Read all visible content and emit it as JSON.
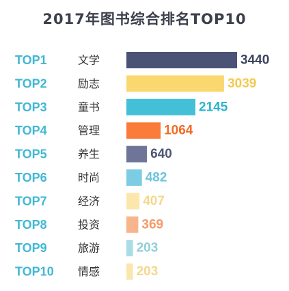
{
  "chart_data": {
    "type": "bar",
    "orientation": "horizontal",
    "title": "2017年图书综合排名TOP10",
    "ranks": [
      "TOP1",
      "TOP2",
      "TOP3",
      "TOP4",
      "TOP5",
      "TOP6",
      "TOP7",
      "TOP8",
      "TOP9",
      "TOP10"
    ],
    "categories": [
      "文学",
      "励志",
      "童书",
      "管理",
      "养生",
      "时尚",
      "经济",
      "投资",
      "旅游",
      "情感"
    ],
    "values": [
      3440,
      3039,
      2145,
      1064,
      640,
      482,
      407,
      369,
      203,
      203
    ],
    "bar_colors": [
      "#4a5275",
      "#fbd86f",
      "#44bfd8",
      "#f97c3b",
      "#6e7599",
      "#7ccde3",
      "#fbe6ac",
      "#f8b48a",
      "#a9dde5",
      "#fbe6ac"
    ],
    "value_colors": [
      "#3d4460",
      "#f4c94e",
      "#2eb3cf",
      "#f26a26",
      "#4e5474",
      "#6ac4de",
      "#f4d88c",
      "#f39a67",
      "#8fd0da",
      "#f4d88c"
    ],
    "rank_label_color": "#40b8d4",
    "grid": false,
    "legend": "none"
  }
}
